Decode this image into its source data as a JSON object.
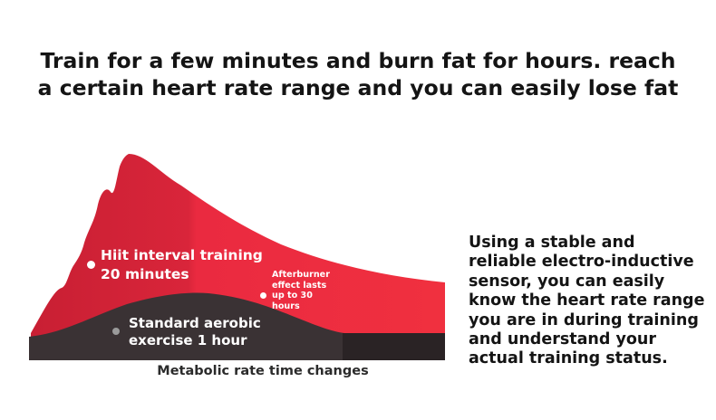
{
  "headline": {
    "line1": "Train for a few minutes and burn fat for hours. reach",
    "line2": "a certain heart rate range and you can easily lose fat"
  },
  "figure": {
    "hiit_label": {
      "line1": "Hiit interval training",
      "line2": "20 minutes"
    },
    "aerobic_label": {
      "line1": "Standard aerobic",
      "line2": "exercise 1 hour"
    },
    "afterburner_label": {
      "line1": "Afterburner",
      "line2": "effect lasts",
      "line3": "up to 30",
      "line4": "hours"
    },
    "caption": "Metabolic rate time changes",
    "colors": {
      "hiit": "#e8263c",
      "hiit_shade": "#c81f33",
      "aerobic": "#3a3234",
      "aerobic_dark": "#2a2325"
    }
  },
  "side_text": "Using a stable and reliable electro-inductive sensor, you can easily know the heart rate range you are in during training and understand your actual training status."
}
